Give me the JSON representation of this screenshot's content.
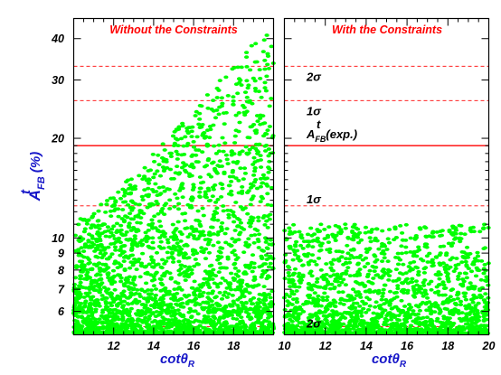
{
  "chart_data": {
    "type": "scatter",
    "ylabel": {
      "main": "A",
      "sup": "t",
      "sub": "FB",
      "unit": " (%)"
    },
    "xlabel": {
      "main": "cotθ",
      "sub": "R"
    },
    "y_axis": {
      "scale": "log",
      "ylim": [
        5.1,
        46
      ],
      "ticks": [
        6,
        7,
        8,
        9,
        10,
        20,
        30,
        40
      ]
    },
    "colors": {
      "points": "#00ff00",
      "reference_lines": "#ff0000",
      "titles": "#ff0000",
      "axis_labels": "#1515c8"
    },
    "reference_lines": [
      {
        "y": 5.4,
        "style": "dashed",
        "label": "2σ"
      },
      {
        "y": 12.5,
        "style": "dashed",
        "label": "1σ"
      },
      {
        "y": 19.0,
        "style": "solid",
        "label": "A_FB^t(exp.)"
      },
      {
        "y": 26.0,
        "style": "dashed",
        "label": "1σ"
      },
      {
        "y": 33.0,
        "style": "dashed",
        "label": "2σ"
      }
    ],
    "panels": [
      {
        "title": "Without the Constraints",
        "xlim": [
          10,
          20
        ],
        "xticks": [
          12,
          14,
          16,
          18
        ],
        "annotations": false,
        "points_description": "dense band of points from y≈5.2 upward; upper envelope rises from ≈11 at x=10 to ≈45 at x=20",
        "envelope": {
          "x": [
            10,
            12,
            14,
            16,
            18,
            20
          ],
          "ymax": [
            11,
            13.5,
            18,
            24,
            33,
            45
          ]
        },
        "n_points": 2600
      },
      {
        "title": "With the Constraints",
        "xlim": [
          10,
          20
        ],
        "xticks": [
          10,
          12,
          14,
          16,
          18,
          20
        ],
        "annotations": true,
        "points_description": "points confined below the experimental 1σ region, y≈5.2 to ≈11",
        "envelope": {
          "x": [
            10,
            20
          ],
          "ymax": [
            11,
            11
          ]
        },
        "n_points": 1700
      }
    ],
    "annotation_labels": {
      "two_sigma": "2σ",
      "one_sigma": "1σ",
      "exp_main": "A",
      "exp_sub": "FB",
      "exp_sup": "t",
      "exp_tail": "(exp.)"
    }
  }
}
